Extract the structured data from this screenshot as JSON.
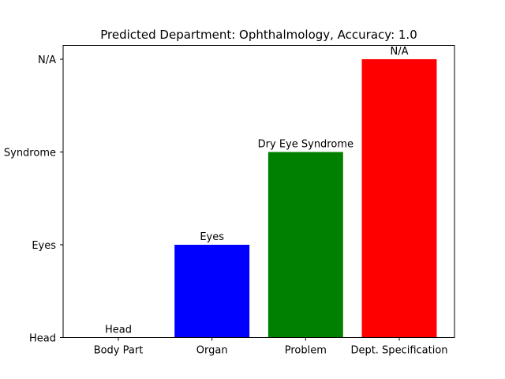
{
  "chart_data": {
    "type": "bar",
    "title": "Predicted Department: Ophthalmology, Accuracy: 1.0",
    "xlabel": "",
    "ylabel": "",
    "categories": [
      "Body Part",
      "Organ",
      "Problem",
      "Dept. Specification"
    ],
    "y_categories": [
      "Head",
      "Eyes",
      "Dry Eye Syndrome",
      "N/A"
    ],
    "values": [
      "Head",
      "Eyes",
      "Dry Eye Syndrome",
      "N/A"
    ],
    "value_index": [
      0,
      1,
      2,
      3
    ],
    "bar_colors": [
      "#0000ff",
      "#0000ff",
      "#008000",
      "#ff0000"
    ],
    "data_labels": [
      "Head",
      "Eyes",
      "Dry Eye Syndrome",
      "N/A"
    ],
    "ylim": [
      0,
      3
    ],
    "grid": false,
    "legend": "none"
  }
}
